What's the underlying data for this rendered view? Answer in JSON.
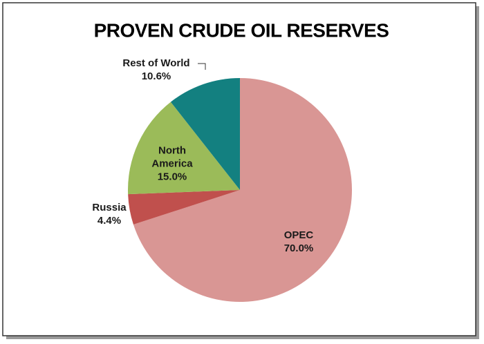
{
  "chart_data": {
    "type": "pie",
    "title": "PROVEN CRUDE OIL RESERVES",
    "categories": [
      "OPEC",
      "Russia",
      "North America",
      "Rest of World"
    ],
    "values": [
      70.0,
      4.4,
      15.0,
      10.6
    ],
    "value_labels": [
      "70.0%",
      "4.4%",
      "15.0%",
      "10.6%"
    ],
    "colors": [
      "#d99694",
      "#c0504d",
      "#9bbb59",
      "#138080"
    ]
  }
}
